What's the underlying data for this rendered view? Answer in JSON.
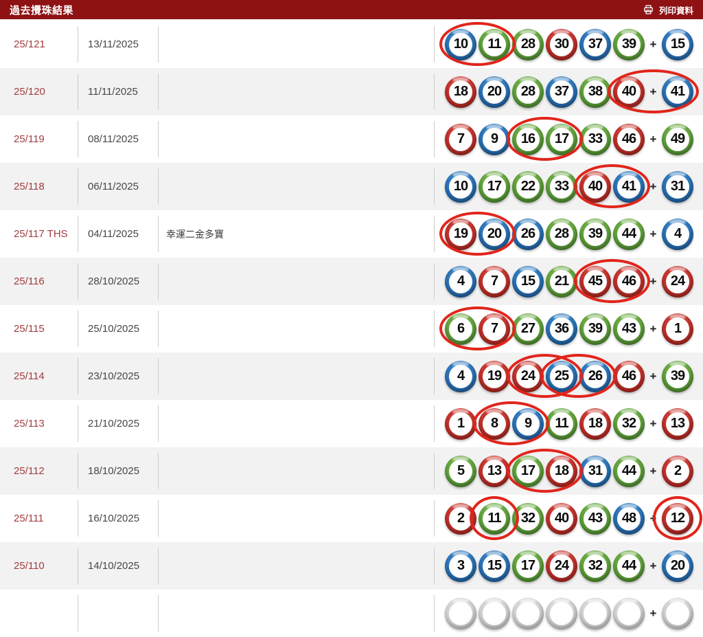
{
  "header": {
    "title": "過去攪珠結果",
    "print_label": "列印資料"
  },
  "plus_sign": "+",
  "colors": {
    "header_bg": "#8e1114",
    "row_alt": "#f2f2f2",
    "draw_no_text": "#a33c3e",
    "circle_highlight": "#e1251b",
    "ball_red": "#c2332d",
    "ball_blue": "#2b74b8",
    "ball_green": "#62a43c"
  },
  "rows": [
    {
      "draw_no": "25/121",
      "date": "13/11/2025",
      "name": "",
      "balls": [
        {
          "n": "10",
          "c": "blue"
        },
        {
          "n": "11",
          "c": "green"
        },
        {
          "n": "28",
          "c": "green"
        },
        {
          "n": "30",
          "c": "red"
        },
        {
          "n": "37",
          "c": "blue"
        },
        {
          "n": "39",
          "c": "green"
        }
      ],
      "extra": {
        "n": "15",
        "c": "blue"
      },
      "circles": [
        {
          "from": 0,
          "to": 1
        }
      ]
    },
    {
      "draw_no": "25/120",
      "date": "11/11/2025",
      "name": "",
      "balls": [
        {
          "n": "18",
          "c": "red"
        },
        {
          "n": "20",
          "c": "blue"
        },
        {
          "n": "28",
          "c": "green"
        },
        {
          "n": "37",
          "c": "blue"
        },
        {
          "n": "38",
          "c": "green"
        },
        {
          "n": "40",
          "c": "red"
        }
      ],
      "extra": {
        "n": "41",
        "c": "blue"
      },
      "circles": [
        {
          "from": 5,
          "to": 6
        }
      ]
    },
    {
      "draw_no": "25/119",
      "date": "08/11/2025",
      "name": "",
      "balls": [
        {
          "n": "7",
          "c": "red"
        },
        {
          "n": "9",
          "c": "blue"
        },
        {
          "n": "16",
          "c": "green"
        },
        {
          "n": "17",
          "c": "green"
        },
        {
          "n": "33",
          "c": "green"
        },
        {
          "n": "46",
          "c": "red"
        }
      ],
      "extra": {
        "n": "49",
        "c": "green"
      },
      "circles": [
        {
          "from": 2,
          "to": 3
        }
      ]
    },
    {
      "draw_no": "25/118",
      "date": "06/11/2025",
      "name": "",
      "balls": [
        {
          "n": "10",
          "c": "blue"
        },
        {
          "n": "17",
          "c": "green"
        },
        {
          "n": "22",
          "c": "green"
        },
        {
          "n": "33",
          "c": "green"
        },
        {
          "n": "40",
          "c": "red"
        },
        {
          "n": "41",
          "c": "blue"
        }
      ],
      "extra": {
        "n": "31",
        "c": "blue"
      },
      "circles": [
        {
          "from": 4,
          "to": 5
        }
      ]
    },
    {
      "draw_no": "25/117 THS",
      "date": "04/11/2025",
      "name": "幸運二金多寶",
      "balls": [
        {
          "n": "19",
          "c": "red"
        },
        {
          "n": "20",
          "c": "blue"
        },
        {
          "n": "26",
          "c": "blue"
        },
        {
          "n": "28",
          "c": "green"
        },
        {
          "n": "39",
          "c": "green"
        },
        {
          "n": "44",
          "c": "green"
        }
      ],
      "extra": {
        "n": "4",
        "c": "blue"
      },
      "circles": [
        {
          "from": 0,
          "to": 1
        }
      ]
    },
    {
      "draw_no": "25/116",
      "date": "28/10/2025",
      "name": "",
      "balls": [
        {
          "n": "4",
          "c": "blue"
        },
        {
          "n": "7",
          "c": "red"
        },
        {
          "n": "15",
          "c": "blue"
        },
        {
          "n": "21",
          "c": "green"
        },
        {
          "n": "45",
          "c": "red"
        },
        {
          "n": "46",
          "c": "red"
        }
      ],
      "extra": {
        "n": "24",
        "c": "red"
      },
      "circles": [
        {
          "from": 4,
          "to": 5
        }
      ]
    },
    {
      "draw_no": "25/115",
      "date": "25/10/2025",
      "name": "",
      "balls": [
        {
          "n": "6",
          "c": "green"
        },
        {
          "n": "7",
          "c": "red"
        },
        {
          "n": "27",
          "c": "green"
        },
        {
          "n": "36",
          "c": "blue"
        },
        {
          "n": "39",
          "c": "green"
        },
        {
          "n": "43",
          "c": "green"
        }
      ],
      "extra": {
        "n": "1",
        "c": "red"
      },
      "circles": [
        {
          "from": 0,
          "to": 1
        }
      ]
    },
    {
      "draw_no": "25/114",
      "date": "23/10/2025",
      "name": "",
      "balls": [
        {
          "n": "4",
          "c": "blue"
        },
        {
          "n": "19",
          "c": "red"
        },
        {
          "n": "24",
          "c": "red"
        },
        {
          "n": "25",
          "c": "blue"
        },
        {
          "n": "26",
          "c": "blue"
        },
        {
          "n": "46",
          "c": "red"
        }
      ],
      "extra": {
        "n": "39",
        "c": "green"
      },
      "circles": [
        {
          "from": 2,
          "to": 3
        },
        {
          "from": 3,
          "to": 4
        }
      ]
    },
    {
      "draw_no": "25/113",
      "date": "21/10/2025",
      "name": "",
      "balls": [
        {
          "n": "1",
          "c": "red"
        },
        {
          "n": "8",
          "c": "red"
        },
        {
          "n": "9",
          "c": "blue"
        },
        {
          "n": "11",
          "c": "green"
        },
        {
          "n": "18",
          "c": "red"
        },
        {
          "n": "32",
          "c": "green"
        }
      ],
      "extra": {
        "n": "13",
        "c": "red"
      },
      "circles": [
        {
          "from": 1,
          "to": 2
        }
      ]
    },
    {
      "draw_no": "25/112",
      "date": "18/10/2025",
      "name": "",
      "balls": [
        {
          "n": "5",
          "c": "green"
        },
        {
          "n": "13",
          "c": "red"
        },
        {
          "n": "17",
          "c": "green"
        },
        {
          "n": "18",
          "c": "red"
        },
        {
          "n": "31",
          "c": "blue"
        },
        {
          "n": "44",
          "c": "green"
        }
      ],
      "extra": {
        "n": "2",
        "c": "red"
      },
      "circles": [
        {
          "from": 2,
          "to": 3
        }
      ]
    },
    {
      "draw_no": "25/111",
      "date": "16/10/2025",
      "name": "",
      "balls": [
        {
          "n": "2",
          "c": "red"
        },
        {
          "n": "11",
          "c": "green"
        },
        {
          "n": "32",
          "c": "green"
        },
        {
          "n": "40",
          "c": "red"
        },
        {
          "n": "43",
          "c": "green"
        },
        {
          "n": "48",
          "c": "blue"
        }
      ],
      "extra": {
        "n": "12",
        "c": "red"
      },
      "circles": [
        {
          "from": 1,
          "to": 1
        },
        {
          "from": 6,
          "to": 6
        }
      ]
    },
    {
      "draw_no": "25/110",
      "date": "14/10/2025",
      "name": "",
      "balls": [
        {
          "n": "3",
          "c": "blue"
        },
        {
          "n": "15",
          "c": "blue"
        },
        {
          "n": "17",
          "c": "green"
        },
        {
          "n": "24",
          "c": "red"
        },
        {
          "n": "32",
          "c": "green"
        },
        {
          "n": "44",
          "c": "green"
        }
      ],
      "extra": {
        "n": "20",
        "c": "blue"
      },
      "circles": []
    },
    {
      "draw_no": "",
      "date": "",
      "name": "",
      "balls": [
        {
          "n": "",
          "c": "gray"
        },
        {
          "n": "",
          "c": "gray"
        },
        {
          "n": "",
          "c": "gray"
        },
        {
          "n": "",
          "c": "gray"
        },
        {
          "n": "",
          "c": "gray"
        },
        {
          "n": "",
          "c": "gray"
        }
      ],
      "extra": {
        "n": "",
        "c": "gray"
      },
      "circles": [],
      "partial": true
    }
  ]
}
